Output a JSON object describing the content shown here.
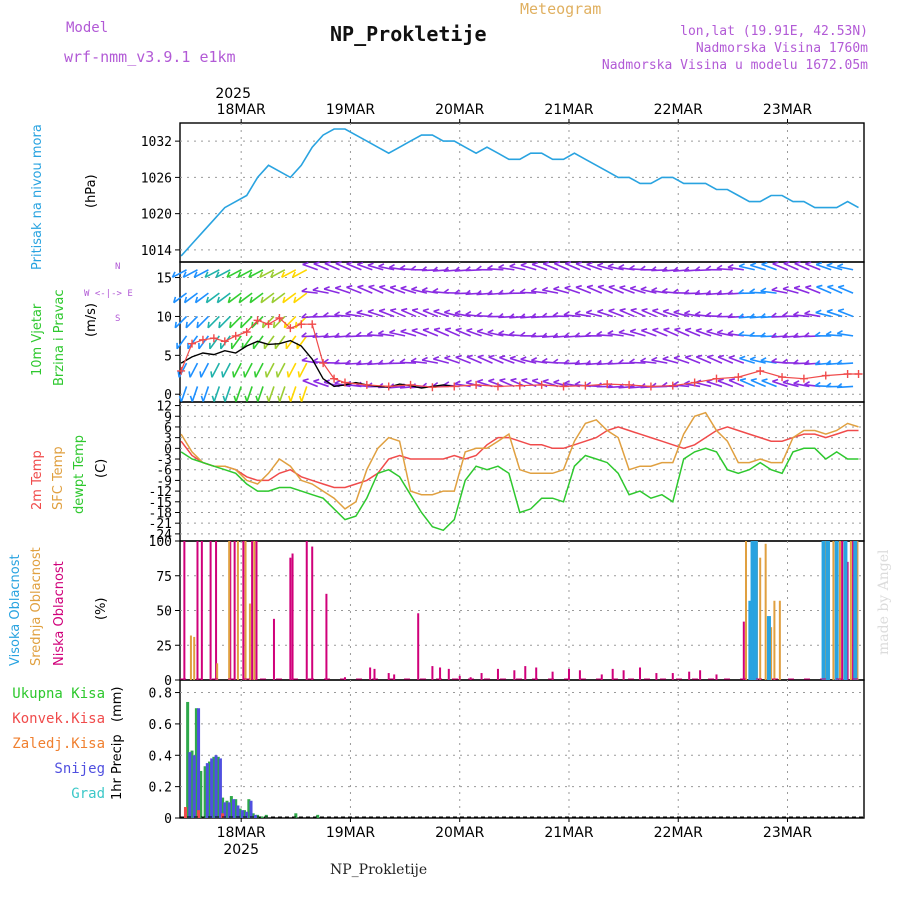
{
  "header": {
    "model_label": "Model",
    "model_name": "wrf-nmm_v3.9.1 e1km",
    "title": "NP_Prokletije",
    "subtitle": "Meteogram",
    "location": "lon,lat (19.91E, 42.53N)",
    "elevation": "Nadmorska Visina 1760m",
    "model_elevation": "Nadmorska Visina u modelu 1672.05m",
    "footer_title": "NP_Prokletije",
    "credit": "made by Angel"
  },
  "colors": {
    "pressure": "#29a3e0",
    "wind_speed": "#000000",
    "gust": "#f04b4b",
    "t2m": "#f04b4b",
    "sfc": "#e0a040",
    "dewpt": "#2ec82e",
    "cloud_high": "#29a3e0",
    "cloud_mid": "#e0a040",
    "cloud_low": "#d0007a",
    "precip_total": "#2ea84a",
    "precip_conv": "#f04b4b",
    "precip_frz": "#f08030",
    "precip_snow": "#5050e0",
    "precip_graupel": "#3cc8c8"
  },
  "chart_data": [
    {
      "type": "line",
      "panel": "pressure",
      "ylabel": "Pritisak na nivou mora",
      "yunit": "(hPa)",
      "yticks": [
        1014,
        1020,
        1026,
        1032
      ],
      "ylim": [
        1012,
        1035
      ],
      "x_top_year": "2025",
      "x_ticks": [
        "18MAR",
        "19MAR",
        "20MAR",
        "21MAR",
        "22MAR",
        "23MAR"
      ],
      "x_bottom_year": "2025",
      "xlim": [
        -0.56,
        5.7
      ],
      "series": [
        {
          "key": "pressure",
          "x": [
            -0.55,
            -0.45,
            -0.35,
            -0.25,
            -0.15,
            -0.05,
            0.05,
            0.15,
            0.25,
            0.35,
            0.45,
            0.55,
            0.65,
            0.75,
            0.85,
            0.95,
            1.05,
            1.15,
            1.25,
            1.35,
            1.45,
            1.55,
            1.65,
            1.75,
            1.85,
            1.95,
            2.05,
            2.15,
            2.25,
            2.35,
            2.45,
            2.55,
            2.65,
            2.75,
            2.85,
            2.95,
            3.05,
            3.15,
            3.25,
            3.35,
            3.45,
            3.55,
            3.65,
            3.75,
            3.85,
            3.95,
            4.05,
            4.15,
            4.25,
            4.35,
            4.45,
            4.55,
            4.65,
            4.75,
            4.85,
            4.95,
            5.05,
            5.15,
            5.25,
            5.35,
            5.45,
            5.55,
            5.65
          ],
          "values": [
            1013,
            1015,
            1017,
            1019,
            1021,
            1022,
            1023,
            1026,
            1028,
            1027,
            1026,
            1028,
            1031,
            1033,
            1034,
            1034,
            1033,
            1032,
            1031,
            1030,
            1031,
            1032,
            1033,
            1033,
            1032,
            1032,
            1031,
            1030,
            1031,
            1030,
            1029,
            1029,
            1030,
            1030,
            1029,
            1029,
            1030,
            1029,
            1028,
            1027,
            1026,
            1026,
            1025,
            1025,
            1026,
            1026,
            1025,
            1025,
            1025,
            1024,
            1024,
            1023,
            1022,
            1022,
            1023,
            1023,
            1022,
            1022,
            1021,
            1021,
            1021,
            1022,
            1021
          ]
        }
      ]
    },
    {
      "type": "line",
      "panel": "wind",
      "ylabel": [
        "10m Vjetar",
        "Brzina i Pravac"
      ],
      "yunit": "(m/s)",
      "direction_legend": [
        "N",
        "W  <-|->  E",
        "S"
      ],
      "yticks": [
        0,
        5,
        10,
        15
      ],
      "ylim": [
        -1,
        17
      ],
      "barb_levels": [
        1,
        4,
        7.5,
        10,
        13,
        16
      ],
      "series": [
        {
          "key": "wind_speed",
          "x": [
            -0.55,
            -0.45,
            -0.35,
            -0.25,
            -0.15,
            -0.05,
            0.05,
            0.15,
            0.25,
            0.35,
            0.45,
            0.55,
            0.65,
            0.75,
            0.85,
            0.95,
            1.05,
            1.15,
            1.25,
            1.35,
            1.45,
            1.55,
            1.65,
            1.75,
            1.85,
            1.95
          ],
          "values": [
            4,
            4.8,
            5.3,
            5.1,
            5.6,
            5.3,
            6.2,
            6.8,
            6.4,
            6.5,
            6.9,
            6.2,
            4.5,
            2,
            1,
            1.2,
            1.5,
            1.2,
            1,
            0.9,
            1.3,
            1.1,
            0.8,
            1,
            1.2,
            1
          ]
        },
        {
          "key": "gust",
          "x": [
            -0.55,
            -0.45,
            -0.35,
            -0.25,
            -0.15,
            -0.05,
            0.05,
            0.15,
            0.25,
            0.35,
            0.45,
            0.55,
            0.65,
            0.75,
            0.85,
            0.95,
            1.15,
            1.35,
            1.55,
            1.75,
            1.95,
            2.15,
            2.35,
            2.55,
            2.75,
            2.95,
            3.15,
            3.35,
            3.55,
            3.75,
            3.95,
            4.15,
            4.35,
            4.55,
            4.75,
            4.95,
            5.15,
            5.35,
            5.55,
            5.65
          ],
          "values": [
            3,
            6.5,
            7,
            7.2,
            6.8,
            7.5,
            8,
            9.5,
            9,
            9.8,
            8.5,
            9,
            9,
            4,
            2,
            1.5,
            1.2,
            1,
            1.2,
            0.9,
            1,
            1.2,
            1,
            1.1,
            1.2,
            1,
            1.1,
            1.3,
            1.2,
            1,
            1.1,
            1.5,
            2,
            2.2,
            3,
            2.2,
            2,
            2.4,
            2.6,
            2.6
          ]
        }
      ]
    },
    {
      "type": "line",
      "panel": "temperature",
      "ylabel": [
        "2m Temp",
        "SFC Temp",
        "dewpt Temp"
      ],
      "yunit": "(C)",
      "yticks": [
        -24,
        -21,
        -18,
        -15,
        -12,
        -9,
        -6,
        -3,
        0,
        3,
        6,
        9,
        12
      ],
      "ylim": [
        -26,
        13
      ],
      "series": [
        {
          "key": "t2m",
          "x": [
            -0.55,
            -0.45,
            -0.35,
            -0.25,
            -0.15,
            -0.05,
            0.05,
            0.15,
            0.25,
            0.35,
            0.45,
            0.55,
            0.65,
            0.75,
            0.85,
            0.95,
            1.05,
            1.15,
            1.25,
            1.35,
            1.45,
            1.55,
            1.65,
            1.75,
            1.85,
            1.95,
            2.05,
            2.15,
            2.25,
            2.35,
            2.45,
            2.55,
            2.65,
            2.75,
            2.85,
            2.95,
            3.05,
            3.15,
            3.25,
            3.35,
            3.45,
            3.55,
            3.65,
            3.75,
            3.85,
            3.95,
            4.05,
            4.15,
            4.25,
            4.35,
            4.45,
            4.55,
            4.65,
            4.75,
            4.85,
            4.95,
            5.05,
            5.15,
            5.25,
            5.35,
            5.45,
            5.55,
            5.65
          ],
          "values": [
            2,
            -2,
            -4,
            -5,
            -5,
            -6,
            -8,
            -9,
            -9,
            -7,
            -6,
            -8,
            -9,
            -10,
            -11,
            -11,
            -10,
            -9,
            -7,
            -3,
            -2,
            -3,
            -3,
            -3,
            -3,
            -2,
            -3,
            -2,
            1,
            3,
            3,
            2,
            1,
            1,
            0,
            0,
            1,
            2,
            3,
            5,
            6,
            5,
            4,
            3,
            2,
            1,
            0,
            1,
            3,
            5,
            6,
            5,
            4,
            3,
            2,
            2,
            3,
            4,
            4,
            3,
            4,
            5,
            5
          ]
        },
        {
          "key": "sfc",
          "x": [
            -0.55,
            -0.45,
            -0.35,
            -0.25,
            -0.15,
            -0.05,
            0.05,
            0.15,
            0.25,
            0.35,
            0.45,
            0.55,
            0.65,
            0.75,
            0.85,
            0.95,
            1.05,
            1.15,
            1.25,
            1.35,
            1.45,
            1.55,
            1.65,
            1.75,
            1.85,
            1.95,
            2.05,
            2.15,
            2.25,
            2.35,
            2.45,
            2.55,
            2.65,
            2.75,
            2.85,
            2.95,
            3.05,
            3.15,
            3.25,
            3.35,
            3.45,
            3.55,
            3.65,
            3.75,
            3.85,
            3.95,
            4.05,
            4.15,
            4.25,
            4.35,
            4.45,
            4.55,
            4.65,
            4.75,
            4.85,
            4.95,
            5.05,
            5.15,
            5.25,
            5.35,
            5.45,
            5.55,
            5.65
          ],
          "values": [
            4,
            -1,
            -4,
            -5,
            -5,
            -6,
            -9,
            -10,
            -7,
            -3,
            -5,
            -9,
            -10,
            -12,
            -14,
            -17,
            -15,
            -6,
            0,
            3,
            2,
            -12,
            -13,
            -13,
            -12,
            -12,
            -1,
            0,
            0,
            2,
            4,
            -6,
            -7,
            -7,
            -7,
            -6,
            2,
            7,
            8,
            5,
            3,
            -6,
            -5,
            -5,
            -4,
            -4,
            4,
            9,
            10,
            5,
            2,
            -4,
            -4,
            -3,
            -4,
            -4,
            3,
            5,
            5,
            4,
            5,
            7,
            6
          ]
        },
        {
          "key": "dewpt",
          "x": [
            -0.55,
            -0.45,
            -0.35,
            -0.25,
            -0.15,
            -0.05,
            0.05,
            0.15,
            0.25,
            0.35,
            0.45,
            0.55,
            0.65,
            0.75,
            0.85,
            0.95,
            1.05,
            1.15,
            1.25,
            1.35,
            1.45,
            1.55,
            1.65,
            1.75,
            1.85,
            1.95,
            2.05,
            2.15,
            2.25,
            2.35,
            2.45,
            2.55,
            2.65,
            2.75,
            2.85,
            2.95,
            3.05,
            3.15,
            3.25,
            3.35,
            3.45,
            3.55,
            3.65,
            3.75,
            3.85,
            3.95,
            4.05,
            4.15,
            4.25,
            4.35,
            4.45,
            4.55,
            4.65,
            4.75,
            4.85,
            4.95,
            5.05,
            5.15,
            5.25,
            5.35,
            5.45,
            5.55,
            5.65
          ],
          "values": [
            -1,
            -3,
            -4,
            -5,
            -6,
            -7,
            -10,
            -12,
            -12,
            -11,
            -11,
            -12,
            -13,
            -14,
            -17,
            -20,
            -19,
            -14,
            -7,
            -6,
            -8,
            -13,
            -18,
            -22,
            -23,
            -20,
            -9,
            -5,
            -6,
            -5,
            -7,
            -18,
            -17,
            -14,
            -14,
            -15,
            -5,
            -2,
            -3,
            -4,
            -7,
            -13,
            -12,
            -14,
            -13,
            -15,
            -3,
            -1,
            0,
            -1,
            -6,
            -7,
            -6,
            -4,
            -6,
            -7,
            -1,
            0,
            0,
            -3,
            -1,
            -3,
            -3
          ]
        }
      ]
    },
    {
      "type": "bar",
      "panel": "clouds",
      "ylabel": [
        "Visoka Oblacnost",
        "Srednja Oblacnost",
        "Niska Oblacnost"
      ],
      "yunit": "(%)",
      "yticks": [
        0,
        25,
        50,
        75,
        100
      ],
      "ylim": [
        0,
        100
      ],
      "series": [
        {
          "key": "cloud_low",
          "x": [
            -0.52,
            -0.4,
            -0.36,
            -0.28,
            -0.23,
            -0.1,
            -0.06,
            0.02,
            0.1,
            0.14,
            0.3,
            0.45,
            0.47,
            0.6,
            0.65,
            0.78,
            0.95,
            1.18,
            1.22,
            1.35,
            1.4,
            1.62,
            1.75,
            1.82,
            1.9,
            2.0,
            2.1,
            2.2,
            2.35,
            2.5,
            2.6,
            2.7,
            2.85,
            3.0,
            3.1,
            3.3,
            3.4,
            3.5,
            3.65,
            3.8,
            3.95,
            4.1,
            4.2,
            4.35,
            4.6,
            5.45,
            5.5,
            5.55,
            5.6
          ],
          "values": [
            100,
            100,
            100,
            100,
            100,
            100,
            100,
            100,
            100,
            100,
            44,
            88,
            91,
            100,
            96,
            62,
            2,
            9,
            8,
            5,
            4,
            48,
            10,
            9,
            8,
            3,
            2,
            5,
            8,
            7,
            10,
            9,
            6,
            8,
            7,
            4,
            8,
            7,
            9,
            5,
            5,
            6,
            7,
            4,
            42,
            90,
            100,
            85,
            100
          ]
        },
        {
          "key": "cloud_mid",
          "x": [
            -0.46,
            -0.43,
            -0.22,
            -0.11,
            -0.03,
            0.04,
            0.08,
            0.12,
            4.62,
            4.72,
            4.75,
            4.8,
            4.85,
            4.88,
            4.93,
            5.35,
            5.38,
            5.42,
            5.48,
            5.52,
            5.58,
            5.64
          ],
          "values": [
            32,
            31,
            12,
            100,
            100,
            100,
            55,
            100,
            100,
            100,
            88,
            98,
            38,
            57,
            57,
            100,
            100,
            100,
            100,
            100,
            100,
            100
          ]
        },
        {
          "key": "cloud_high",
          "x": [
            4.66,
            4.68,
            4.69,
            4.71,
            4.83,
            5.33,
            5.37,
            5.45,
            5.53,
            5.62
          ],
          "values": [
            57,
            100,
            100,
            100,
            46,
            100,
            100,
            100,
            100,
            100
          ]
        }
      ]
    },
    {
      "type": "bar",
      "panel": "precip",
      "ylabel": "1hr Precip",
      "yunit": "(mm)",
      "legend": [
        "Ukupna Kisa",
        "Konvek.Kisa",
        "Zaledj.Kisa",
        "Snijeg",
        "Grad"
      ],
      "yticks": [
        0,
        0.2,
        0.4,
        0.6,
        0.8
      ],
      "ylim": [
        0,
        0.88
      ],
      "series": [
        {
          "key": "precip_total",
          "x": [
            -0.49,
            -0.45,
            -0.41,
            -0.37,
            -0.33,
            -0.29,
            -0.25,
            -0.21,
            -0.17,
            -0.13,
            -0.09,
            -0.05,
            -0.01,
            0.03,
            0.07,
            0.11,
            0.15,
            0.19,
            0.23,
            0.5,
            0.7
          ],
          "values": [
            0.74,
            0.43,
            0.7,
            0.3,
            0.33,
            0.36,
            0.39,
            0.39,
            0.13,
            0.11,
            0.14,
            0.12,
            0.06,
            0.05,
            0.12,
            0.03,
            0.02,
            0.01,
            0.02,
            0.03,
            0.02
          ]
        },
        {
          "key": "precip_snow",
          "x": [
            -0.47,
            -0.43,
            -0.39,
            -0.31,
            -0.27,
            -0.23,
            -0.19,
            -0.15,
            -0.11,
            -0.07,
            -0.03,
            0.01,
            0.05,
            0.09,
            0.13
          ],
          "values": [
            0.42,
            0.4,
            0.7,
            0.35,
            0.38,
            0.4,
            0.38,
            0.1,
            0.1,
            0.12,
            0.08,
            0.05,
            0.04,
            0.11,
            0.02
          ]
        },
        {
          "key": "precip_conv",
          "x": [
            -0.51,
            -0.39,
            -0.17
          ],
          "values": [
            0.07,
            0.05,
            0.03
          ]
        }
      ]
    }
  ]
}
